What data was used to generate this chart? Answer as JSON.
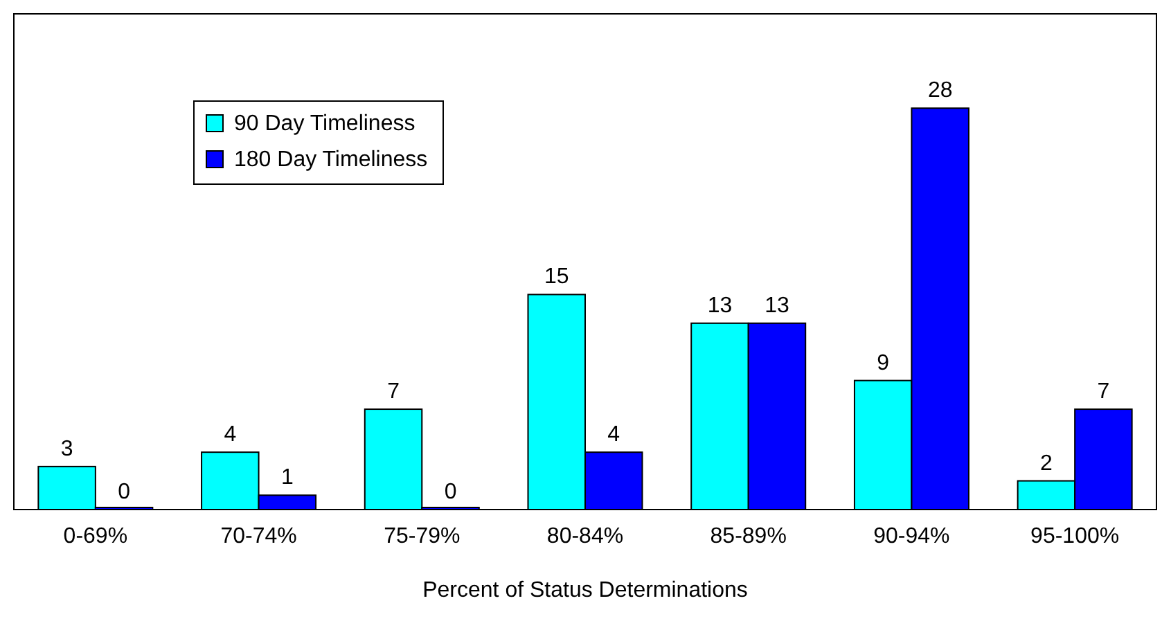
{
  "chart_data": {
    "type": "bar",
    "xlabel": "Percent of Status Determinations",
    "categories": [
      "0-69%",
      "70-74%",
      "75-79%",
      "80-84%",
      "85-89%",
      "90-94%",
      "95-100%"
    ],
    "series": [
      {
        "name": "90 Day Timeliness",
        "color": "#00ffff",
        "values": [
          3,
          4,
          7,
          15,
          13,
          9,
          2
        ]
      },
      {
        "name": "180 Day Timeliness",
        "color": "#0000ff",
        "values": [
          0,
          1,
          0,
          4,
          13,
          28,
          7
        ]
      }
    ],
    "data_labels": true,
    "legend": "top left"
  }
}
